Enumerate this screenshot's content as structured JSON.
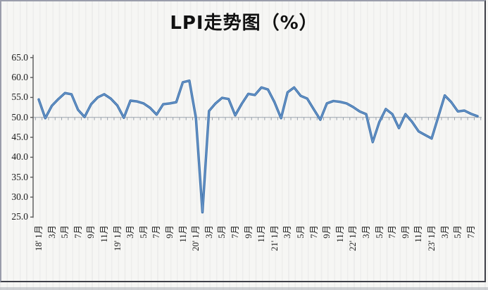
{
  "chart": {
    "title": "LPI走势图（%）"
  },
  "chart_data": {
    "type": "line",
    "title": "LPI走势图（%）",
    "series_name": "LPI",
    "unit": "%",
    "start_month": "2018-01",
    "end_month": "2023-08",
    "x": [
      "18'1月",
      "18'2月",
      "18'3月",
      "18'4月",
      "18'5月",
      "18'6月",
      "18'7月",
      "18'8月",
      "18'9月",
      "18'10月",
      "18'11月",
      "18'12月",
      "19'1月",
      "19'2月",
      "19'3月",
      "19'4月",
      "19'5月",
      "19'6月",
      "19'7月",
      "19'8月",
      "19'9月",
      "19'10月",
      "19'11月",
      "19'12月",
      "20'1月",
      "20'2月",
      "20'3月",
      "20'4月",
      "20'5月",
      "20'6月",
      "20'7月",
      "20'8月",
      "20'9月",
      "20'10月",
      "20'11月",
      "20'12月",
      "21'1月",
      "21'2月",
      "21'3月",
      "21'4月",
      "21'5月",
      "21'6月",
      "21'7月",
      "21'8月",
      "21'9月",
      "21'10月",
      "21'11月",
      "21'12月",
      "22'1月",
      "22'2月",
      "22'3月",
      "22'4月",
      "22'5月",
      "22'6月",
      "22'7月",
      "22'8月",
      "22'9月",
      "22'10月",
      "22'11月",
      "22'12月",
      "23'1月",
      "23'2月",
      "23'3月",
      "23'4月",
      "23'5月",
      "23'6月",
      "23'7月",
      "23'8月"
    ],
    "values": [
      54.5,
      49.8,
      52.9,
      54.6,
      56.1,
      55.8,
      51.9,
      50.1,
      53.3,
      55.0,
      55.8,
      54.7,
      53.0,
      49.9,
      54.2,
      54.0,
      53.5,
      52.4,
      50.7,
      53.3,
      53.5,
      53.8,
      58.8,
      59.2,
      49.9,
      26.2,
      51.6,
      53.5,
      54.9,
      54.6,
      50.5,
      53.4,
      55.9,
      55.6,
      57.5,
      57.0,
      53.8,
      49.8,
      56.3,
      57.5,
      55.4,
      54.7,
      52.0,
      49.4,
      53.5,
      54.1,
      53.9,
      53.5,
      52.6,
      51.5,
      50.8,
      43.8,
      48.8,
      52.1,
      50.8,
      47.3,
      50.8,
      48.9,
      46.5,
      45.6,
      44.7,
      50.1,
      55.5,
      53.8,
      51.5,
      51.7,
      50.9,
      50.3
    ],
    "x_tick_labels": [
      "18' 1月",
      "3月",
      "5月",
      "7月",
      "9月",
      "11月",
      "19' 1月",
      "3月",
      "5月",
      "7月",
      "9月",
      "11月",
      "20' 1月",
      "3月",
      "5月",
      "7月",
      "9月",
      "11月",
      "21' 1月",
      "3月",
      "5月",
      "7月",
      "9月",
      "11月",
      "22' 1月",
      "3月",
      "5月",
      "7月",
      "9月",
      "11月",
      "23' 1月",
      "3月",
      "5月",
      "7月"
    ],
    "y_tick_labels": [
      "65.0",
      "60.0",
      "55.0",
      "50.0",
      "45.0",
      "40.0",
      "35.0",
      "30.0",
      "25.0"
    ],
    "ylim": [
      25,
      65
    ],
    "ytick_step": 5,
    "reference_line": 50,
    "grid": "faint vertical monthly stripes",
    "legend_position": "none",
    "line_color": "#3F73AD",
    "line_highlight_color": "#7BA4D3",
    "axis_color": "#5a5a5a",
    "reference_line_color": "#9aa2ac"
  }
}
